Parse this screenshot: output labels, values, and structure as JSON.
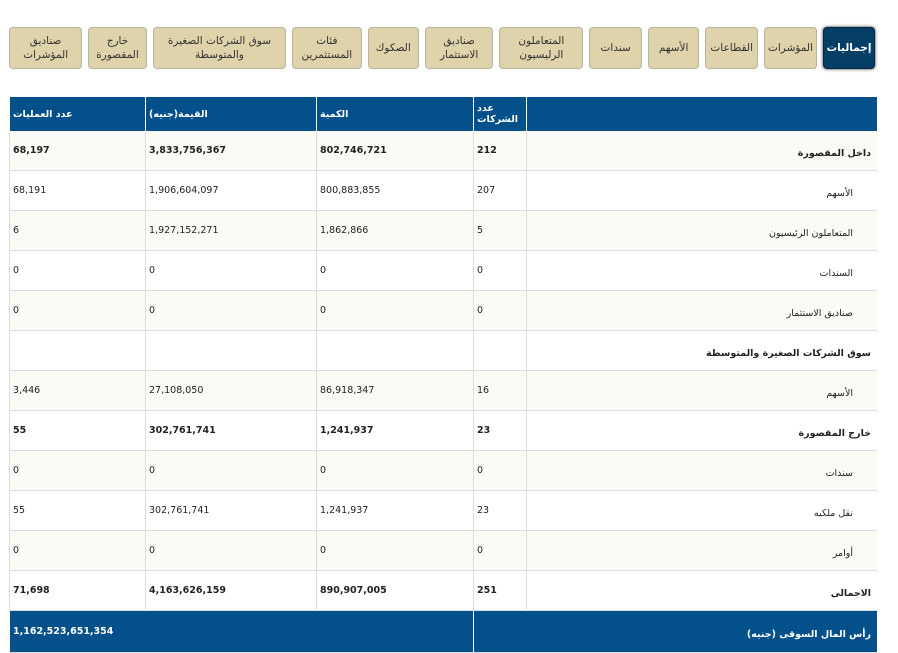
{
  "tabs": [
    "إجماليات",
    "المؤشرات",
    "القطاعات",
    "الأسهم",
    "سندات",
    "المتعاملون الرليسيون",
    "صناديق الاستثمار",
    "الصكوك",
    "فئات المستثمرين",
    "سوق الشركات الصغيرة والمتوسطة",
    "خارج المقصورة",
    "صناديق المؤشرات"
  ],
  "headers": {
    "label": "",
    "companies": "عدد الشركات",
    "quantity": "الكمية",
    "value": "القيمة(جنيه)",
    "operations": "عدد العمليات"
  },
  "rows": [
    {
      "label": "داخل المقصورة",
      "companies": "212",
      "quantity": "802,746,721",
      "value": "3,833,756,367",
      "operations": "68,197"
    },
    {
      "label": "الأسهم",
      "companies": "207",
      "quantity": "800,883,855",
      "value": "1,906,604,097",
      "operations": "68,191"
    },
    {
      "label": "المتعاملون الرئيسيون",
      "companies": "5",
      "quantity": "1,862,866",
      "value": "1,927,152,271",
      "operations": "6"
    },
    {
      "label": "السندات",
      "companies": "0",
      "quantity": "0",
      "value": "0",
      "operations": "0"
    },
    {
      "label": "صناديق الاستثمار",
      "companies": "0",
      "quantity": "0",
      "value": "0",
      "operations": "0"
    },
    {
      "label": "سوق الشركات الصغيرة والمتوسطة",
      "companies": "",
      "quantity": "",
      "value": "",
      "operations": ""
    },
    {
      "label": "الأسهم",
      "companies": "16",
      "quantity": "86,918,347",
      "value": "27,108,050",
      "operations": "3,446"
    },
    {
      "label": "خارج المقصورة",
      "companies": "23",
      "quantity": "1,241,937",
      "value": "302,761,741",
      "operations": "55"
    },
    {
      "label": "سندات",
      "companies": "0",
      "quantity": "0",
      "value": "0",
      "operations": "0"
    },
    {
      "label": "نقل ملكيه",
      "companies": "23",
      "quantity": "1,241,937",
      "value": "302,761,741",
      "operations": "55"
    },
    {
      "label": "أوامر",
      "companies": "0",
      "quantity": "0",
      "value": "0",
      "operations": "0"
    },
    {
      "label": "الاجمالى",
      "companies": "251",
      "quantity": "890,907,005",
      "value": "4,163,626,159",
      "operations": "71,698"
    }
  ],
  "footer": {
    "label": "رأس المال السوقى (جنيه)",
    "value": "1,162,523,651,354"
  }
}
